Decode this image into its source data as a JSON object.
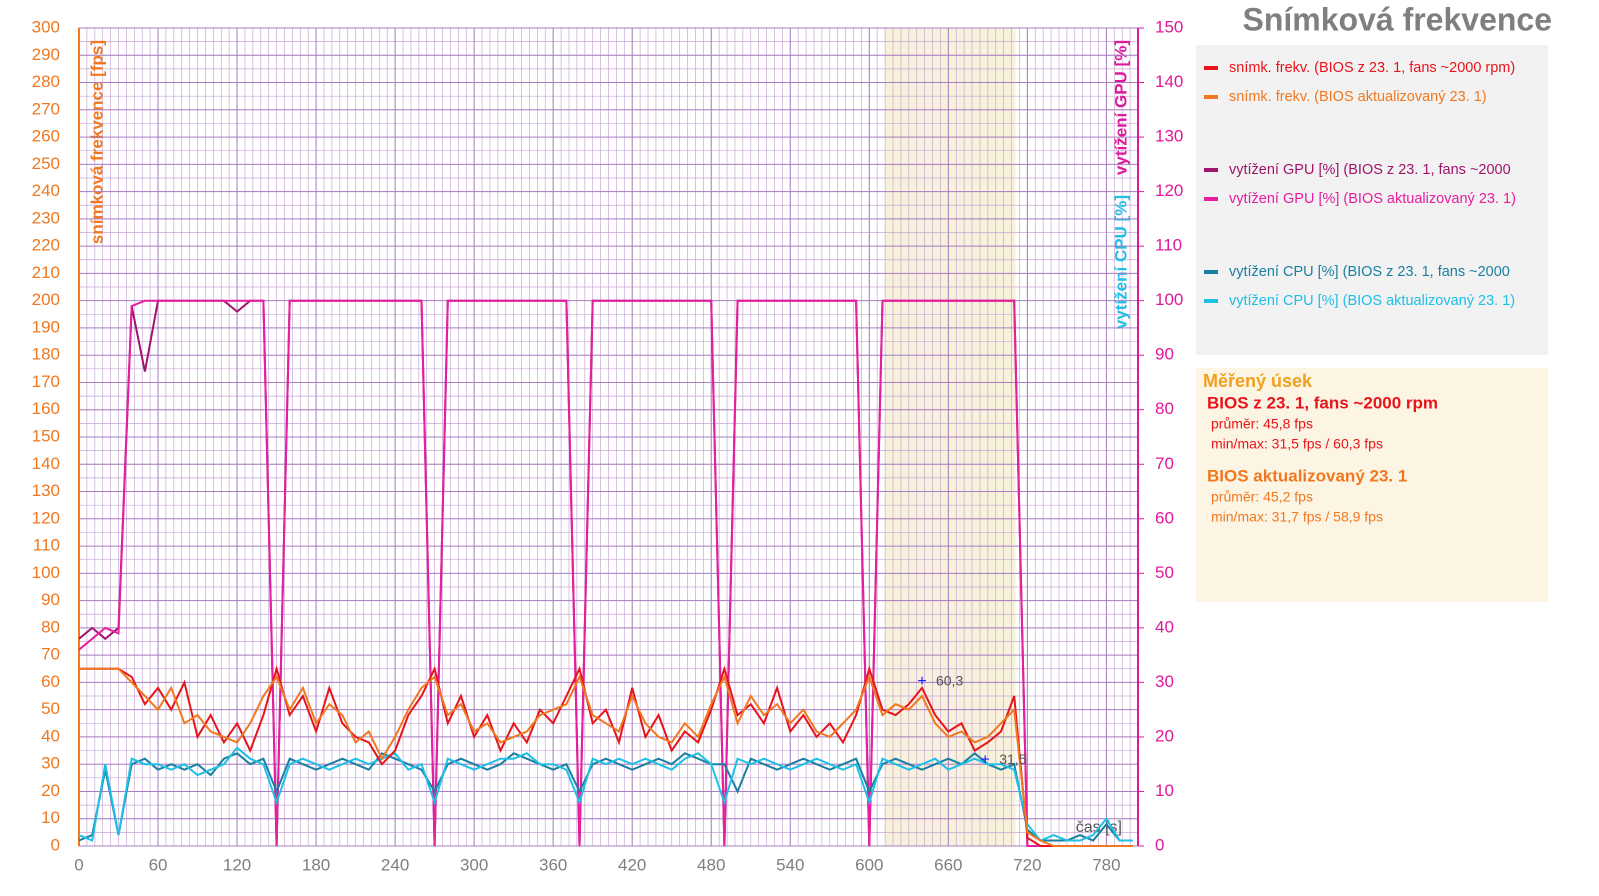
{
  "chart_data": {
    "type": "line",
    "title": "Snímková frekvence",
    "ylabel": "snímková frekvence [fps]",
    "y2label": "vytížení GPU [%]",
    "y2label_cpu": "vytížení CPU [%]",
    "xlabel": "čas [s]",
    "xlim": [
      0,
      804
    ],
    "ylim": [
      0,
      300
    ],
    "y2lim": [
      0,
      150
    ],
    "xticks": [
      0,
      60,
      120,
      180,
      240,
      300,
      360,
      420,
      480,
      540,
      600,
      660,
      720,
      780
    ],
    "yticks": [
      0,
      10,
      20,
      30,
      40,
      50,
      60,
      70,
      80,
      90,
      100,
      110,
      120,
      130,
      140,
      150,
      160,
      170,
      180,
      190,
      200,
      210,
      220,
      230,
      240,
      250,
      260,
      270,
      280,
      290,
      300
    ],
    "y2ticks": [
      0,
      10,
      20,
      30,
      40,
      50,
      60,
      70,
      80,
      90,
      100,
      110,
      120,
      130,
      140,
      150
    ],
    "grid": true,
    "minor_grid": {
      "x": 6,
      "y": 5
    },
    "shaded_range": [
      612,
      711
    ],
    "x": [
      0,
      10,
      20,
      30,
      40,
      50,
      60,
      70,
      80,
      90,
      100,
      110,
      120,
      130,
      140,
      150,
      160,
      170,
      180,
      190,
      200,
      210,
      220,
      230,
      240,
      250,
      260,
      270,
      280,
      290,
      300,
      310,
      320,
      330,
      340,
      350,
      360,
      370,
      380,
      390,
      400,
      410,
      420,
      430,
      440,
      450,
      460,
      470,
      480,
      490,
      500,
      510,
      520,
      530,
      540,
      550,
      560,
      570,
      580,
      590,
      600,
      610,
      620,
      630,
      640,
      650,
      660,
      670,
      680,
      690,
      700,
      710,
      720,
      730,
      740,
      750,
      760,
      770,
      780,
      790,
      800
    ],
    "series": [
      {
        "name": "snímk. frekv. (BIOS z 23. 1, fans ~2000 rpm)",
        "color": "#e8141b",
        "values": [
          65,
          65,
          65,
          65,
          62,
          52,
          58,
          50,
          60,
          40,
          48,
          38,
          45,
          35,
          48,
          65,
          48,
          55,
          42,
          58,
          45,
          40,
          38,
          30,
          35,
          48,
          55,
          65,
          45,
          55,
          40,
          48,
          35,
          45,
          38,
          50,
          45,
          55,
          65,
          45,
          50,
          38,
          58,
          40,
          48,
          35,
          42,
          38,
          50,
          65,
          48,
          52,
          45,
          58,
          42,
          48,
          40,
          45,
          38,
          48,
          65,
          50,
          48,
          52,
          58,
          48,
          42,
          45,
          35,
          38,
          42,
          55,
          3,
          0,
          0,
          0,
          0,
          0,
          0,
          0,
          0
        ]
      },
      {
        "name": "snímk. frekv. (BIOS aktualizovaný 23. 1)",
        "color": "#f07820",
        "values": [
          65,
          65,
          65,
          65,
          60,
          55,
          50,
          58,
          45,
          48,
          42,
          40,
          38,
          45,
          55,
          62,
          50,
          58,
          45,
          52,
          48,
          38,
          42,
          32,
          40,
          50,
          58,
          62,
          48,
          52,
          42,
          45,
          38,
          40,
          42,
          48,
          50,
          52,
          62,
          48,
          45,
          42,
          55,
          45,
          40,
          38,
          45,
          40,
          52,
          62,
          45,
          55,
          48,
          52,
          45,
          50,
          42,
          40,
          45,
          50,
          62,
          48,
          52,
          50,
          55,
          45,
          40,
          42,
          38,
          40,
          45,
          50,
          5,
          2,
          0,
          0,
          0,
          0,
          0,
          0,
          0
        ]
      },
      {
        "name": "vytížení GPU [%] (BIOS z 23. 1, fans ~2000",
        "color": "#a0146e",
        "axis": "y2",
        "values": [
          38,
          40,
          38,
          40,
          99,
          87,
          100,
          100,
          100,
          100,
          100,
          100,
          98,
          100,
          100,
          0,
          100,
          100,
          100,
          100,
          100,
          100,
          100,
          100,
          100,
          100,
          100,
          0,
          100,
          100,
          100,
          100,
          100,
          100,
          100,
          100,
          100,
          100,
          0,
          100,
          100,
          100,
          100,
          100,
          100,
          100,
          100,
          100,
          100,
          0,
          100,
          100,
          100,
          100,
          100,
          100,
          100,
          100,
          100,
          100,
          0,
          100,
          100,
          100,
          100,
          100,
          100,
          100,
          100,
          100,
          100,
          100,
          0,
          0,
          0,
          0,
          0,
          0,
          0,
          0,
          0
        ]
      },
      {
        "name": "vytížení GPU [%] (BIOS aktualizovaný 23. 1)",
        "color": "#e61ea0",
        "axis": "y2",
        "values": [
          36,
          38,
          40,
          39,
          99,
          100,
          100,
          100,
          100,
          100,
          100,
          100,
          100,
          100,
          100,
          0,
          100,
          100,
          100,
          100,
          100,
          100,
          100,
          100,
          100,
          100,
          100,
          0,
          100,
          100,
          100,
          100,
          100,
          100,
          100,
          100,
          100,
          100,
          0,
          100,
          100,
          100,
          100,
          100,
          100,
          100,
          100,
          100,
          100,
          0,
          100,
          100,
          100,
          100,
          100,
          100,
          100,
          100,
          100,
          100,
          0,
          100,
          100,
          100,
          100,
          100,
          100,
          100,
          100,
          100,
          100,
          100,
          0,
          0,
          0,
          0,
          0,
          0,
          0,
          0,
          0
        ]
      },
      {
        "name": "vytížení CPU [%] (BIOS z 23. 1, fans ~2000",
        "color": "#1a7fa0",
        "axis": "y2",
        "values": [
          1,
          2,
          14,
          2,
          15,
          16,
          14,
          15,
          14,
          15,
          13,
          16,
          17,
          15,
          16,
          10,
          16,
          15,
          14,
          15,
          16,
          15,
          14,
          17,
          16,
          15,
          14,
          10,
          15,
          16,
          15,
          14,
          15,
          17,
          16,
          15,
          14,
          15,
          10,
          15,
          16,
          15,
          14,
          15,
          16,
          15,
          17,
          16,
          15,
          15,
          10,
          16,
          15,
          14,
          15,
          16,
          15,
          14,
          15,
          16,
          10,
          15,
          16,
          15,
          14,
          15,
          16,
          15,
          17,
          15,
          14,
          15,
          3,
          1,
          1,
          1,
          2,
          1,
          4,
          1,
          1
        ]
      },
      {
        "name": "vytížení CPU [%] (BIOS aktualizovaný 23. 1)",
        "color": "#1ec0e6",
        "axis": "y2",
        "values": [
          2,
          1,
          15,
          2,
          16,
          15,
          15,
          14,
          15,
          13,
          14,
          15,
          18,
          16,
          15,
          8,
          15,
          16,
          15,
          14,
          15,
          16,
          15,
          16,
          17,
          14,
          15,
          8,
          16,
          15,
          14,
          15,
          16,
          16,
          17,
          15,
          15,
          14,
          8,
          16,
          15,
          16,
          15,
          16,
          15,
          14,
          16,
          17,
          15,
          8,
          16,
          15,
          16,
          15,
          14,
          15,
          16,
          15,
          14,
          15,
          8,
          16,
          15,
          14,
          15,
          16,
          14,
          15,
          16,
          15,
          15,
          14,
          4,
          1,
          2,
          1,
          1,
          2,
          5,
          1,
          1
        ]
      }
    ],
    "annotations": [
      {
        "text": "60,3",
        "x": 640,
        "y": 60.3
      },
      {
        "text": "31,5",
        "x": 688,
        "y": 31.5
      }
    ],
    "summary": {
      "heading": "Měřený úsek",
      "groups": [
        {
          "title": "BIOS z 23. 1, fans ~2000 rpm",
          "color": "#e8141b",
          "lines": [
            "průměr: 45,8 fps",
            "min/max: 31,5 fps / 60,3 fps"
          ]
        },
        {
          "title": "BIOS aktualizovaný 23. 1",
          "color": "#f07820",
          "lines": [
            "průměr: 45,2 fps",
            "min/max: 31,7 fps / 58,9 fps"
          ]
        }
      ]
    }
  }
}
